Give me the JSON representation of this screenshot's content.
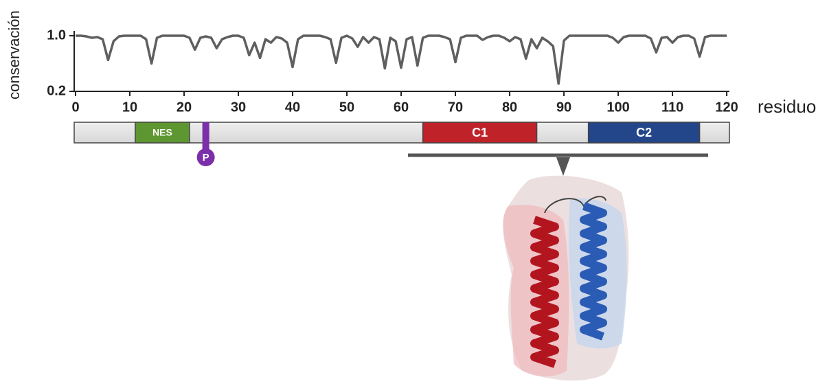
{
  "chart_data": {
    "type": "line",
    "y_label": "conservación",
    "x_label": "residuo",
    "x": [
      0,
      1,
      2,
      3,
      4,
      5,
      6,
      7,
      8,
      9,
      10,
      11,
      12,
      13,
      14,
      15,
      16,
      17,
      18,
      19,
      20,
      21,
      22,
      23,
      24,
      25,
      26,
      27,
      28,
      29,
      30,
      31,
      32,
      33,
      34,
      35,
      36,
      37,
      38,
      39,
      40,
      41,
      42,
      43,
      44,
      45,
      46,
      47,
      48,
      49,
      50,
      51,
      52,
      53,
      54,
      55,
      56,
      57,
      58,
      59,
      60,
      61,
      62,
      63,
      64,
      65,
      66,
      67,
      68,
      69,
      70,
      71,
      72,
      73,
      74,
      75,
      76,
      77,
      78,
      79,
      80,
      81,
      82,
      83,
      84,
      85,
      86,
      87,
      88,
      89,
      90,
      91,
      92,
      93,
      94,
      95,
      96,
      97,
      98,
      99,
      100,
      101,
      102,
      103,
      104,
      105,
      106,
      107,
      108,
      109,
      110,
      111,
      112,
      113,
      114,
      115,
      116,
      117,
      118,
      119,
      120
    ],
    "values": [
      1,
      1,
      0.99,
      0.97,
      0.98,
      0.95,
      0.65,
      0.92,
      0.99,
      1,
      1,
      1,
      1,
      0.95,
      0.6,
      0.97,
      1,
      1,
      1,
      1,
      1,
      0.97,
      0.8,
      0.97,
      0.99,
      0.97,
      0.82,
      0.95,
      0.98,
      1,
      1,
      0.97,
      0.72,
      0.9,
      0.68,
      0.95,
      0.9,
      0.98,
      0.96,
      0.9,
      0.55,
      0.95,
      1,
      1,
      1,
      1,
      0.98,
      0.95,
      0.61,
      0.97,
      1,
      0.96,
      0.84,
      0.98,
      0.9,
      0.98,
      0.95,
      0.53,
      0.97,
      0.92,
      0.54,
      0.95,
      0.98,
      0.57,
      0.97,
      1,
      1,
      1,
      0.98,
      0.95,
      0.62,
      0.97,
      1,
      1,
      1,
      0.94,
      0.98,
      1,
      1,
      0.97,
      0.92,
      0.98,
      0.95,
      0.67,
      0.95,
      0.82,
      0.97,
      0.92,
      0.85,
      0.31,
      0.93,
      1,
      1,
      1,
      1,
      1,
      1,
      1,
      1,
      0.97,
      0.9,
      0.98,
      1,
      1,
      1,
      1,
      0.96,
      0.76,
      0.97,
      0.98,
      0.9,
      0.98,
      1,
      1,
      0.96,
      0.7,
      0.98,
      1,
      1,
      1,
      1
    ],
    "color": "#5f5f5f",
    "xlim": [
      0,
      121
    ],
    "xticks": [
      0,
      10,
      20,
      30,
      40,
      50,
      60,
      70,
      80,
      90,
      100,
      110,
      120
    ],
    "ylim": [
      0.2,
      1
    ],
    "yticks": [
      {
        "value": 1,
        "label": "1.0"
      },
      {
        "value": 0.2,
        "label": "0.2"
      }
    ],
    "domains": [
      {
        "label": "NES",
        "start": 11,
        "end": 21,
        "color": "#5e9631"
      },
      {
        "label": "C1",
        "start": 64,
        "end": 85,
        "color": "#c0222a"
      },
      {
        "label": "C2",
        "start": 94.5,
        "end": 115,
        "color": "#23468a"
      }
    ],
    "phospho": {
      "label": "P",
      "position": 24,
      "color": "#7b2fa8"
    }
  }
}
